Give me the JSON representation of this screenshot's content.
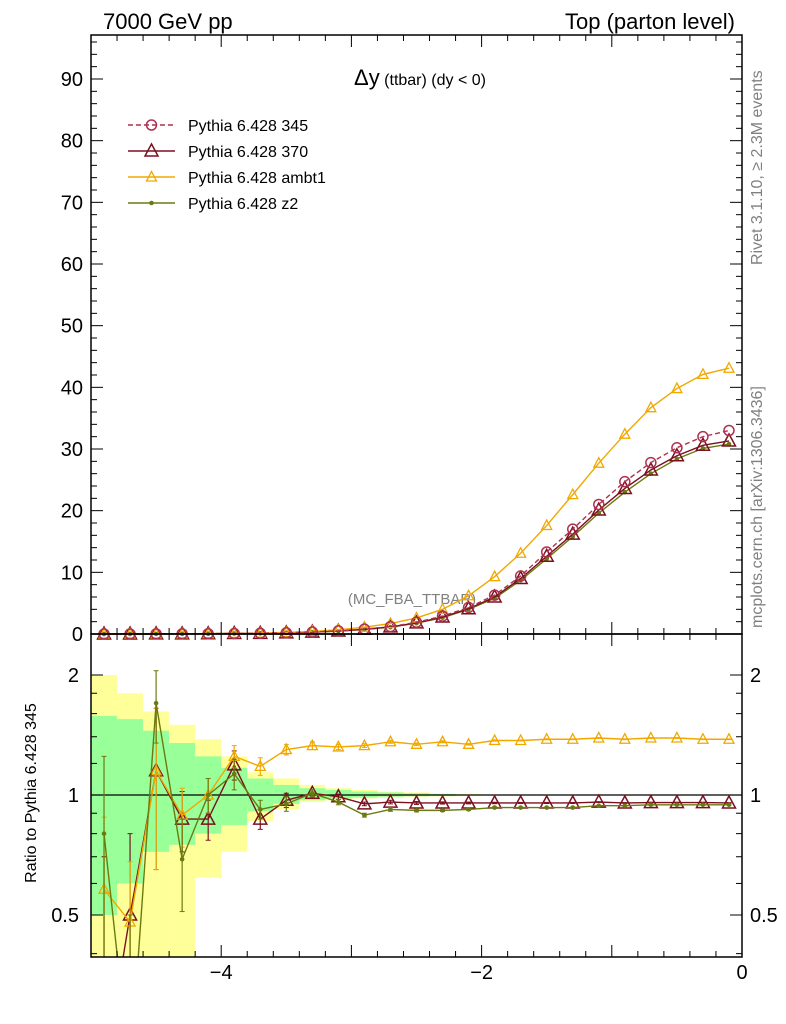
{
  "header": {
    "left": "7000 GeV pp",
    "right": "Top (parton level)"
  },
  "side_labels": {
    "rivet": "Rivet 3.1.10, ≥ 2.3M events",
    "mcplots": "mcplots.cern.ch [arXiv:1306.3436]"
  },
  "watermark": "(MC_FBA_TTBAR)",
  "ratio_ylabel": "Ratio to Pythia 6.428 345",
  "chart_data": [
    {
      "type": "line",
      "title": "Δy (ttbar) (dy < 0)",
      "title_main": "Δy",
      "title_rest": " (ttbar) (dy < 0)",
      "xlim": [
        -5,
        0
      ],
      "ylim": [
        0,
        97
      ],
      "yticks": [
        0,
        10,
        20,
        30,
        40,
        50,
        60,
        70,
        80,
        90
      ],
      "yticks_labels": [
        "0",
        "10",
        "20",
        "30",
        "40",
        "50",
        "60",
        "70",
        "80",
        "90"
      ],
      "legend_placement": "top-left",
      "x": [
        -4.9,
        -4.7,
        -4.5,
        -4.3,
        -4.1,
        -3.9,
        -3.7,
        -3.5,
        -3.3,
        -3.1,
        -2.9,
        -2.7,
        -2.5,
        -2.3,
        -2.1,
        -1.9,
        -1.7,
        -1.5,
        -1.3,
        -1.1,
        -0.9,
        -0.7,
        -0.5,
        -0.3,
        -0.1
      ],
      "series": [
        {
          "name": "Pythia 6.428 345",
          "color": "#b03050",
          "dashed": true,
          "marker": "circle",
          "values": [
            0.005,
            0.01,
            0.02,
            0.03,
            0.05,
            0.08,
            0.12,
            0.2,
            0.32,
            0.5,
            0.8,
            1.2,
            1.9,
            2.9,
            4.3,
            6.3,
            9.4,
            13.3,
            17.0,
            21.0,
            24.7,
            27.8,
            30.2,
            32.0,
            33.0
          ]
        },
        {
          "name": "Pythia 6.428 370",
          "color": "#7a1020",
          "dashed": false,
          "marker": "triangle",
          "values": [
            0.005,
            0.01,
            0.02,
            0.03,
            0.05,
            0.08,
            0.11,
            0.19,
            0.31,
            0.48,
            0.77,
            1.15,
            1.8,
            2.75,
            4.1,
            6.0,
            9.0,
            12.6,
            16.2,
            20.1,
            23.6,
            26.6,
            28.9,
            30.6,
            31.3
          ]
        },
        {
          "name": "Pythia 6.428 ambt1",
          "color": "#f0a800",
          "dashed": false,
          "marker": "triangle-small",
          "values": [
            0.005,
            0.01,
            0.02,
            0.03,
            0.05,
            0.09,
            0.14,
            0.26,
            0.42,
            0.68,
            1.1,
            1.7,
            2.6,
            4.0,
            6.2,
            9.3,
            13.1,
            17.6,
            22.6,
            27.7,
            32.4,
            36.7,
            39.8,
            42.1,
            43.1
          ]
        },
        {
          "name": "Pythia 6.428 z2",
          "color": "#6b7a10",
          "dashed": false,
          "marker": "dot",
          "values": [
            0.004,
            0.01,
            0.02,
            0.03,
            0.05,
            0.08,
            0.11,
            0.2,
            0.3,
            0.46,
            0.72,
            1.1,
            1.75,
            2.65,
            4.0,
            5.8,
            8.7,
            12.2,
            15.8,
            19.6,
            23.0,
            26.0,
            28.4,
            30.1,
            30.8
          ]
        }
      ]
    },
    {
      "type": "line",
      "title": "",
      "ylabel": "Ratio to Pythia 6.428 345",
      "xlim": [
        -5,
        0
      ],
      "ylim": [
        0.33,
        2.3
      ],
      "ylog": true,
      "yticks_labels": [
        "0.5",
        "1",
        "2"
      ],
      "yticks": [
        0.5,
        1,
        2
      ],
      "xticks": [
        -4,
        -2,
        0
      ],
      "xticks_labels": [
        "−4",
        "−2",
        "0"
      ],
      "reference_line": 1,
      "bands": {
        "x_edges": [
          -5.0,
          -4.8,
          -4.6,
          -4.4,
          -4.2,
          -4.0,
          -3.8,
          -3.6,
          -3.4,
          -3.2,
          -3.0,
          -2.8,
          -2.6,
          -2.4,
          -2.2,
          -2.0
        ],
        "yellow_low": [
          0.2,
          0.2,
          0.2,
          0.3,
          0.62,
          0.72,
          0.86,
          0.92,
          0.96,
          0.97,
          0.98,
          0.985,
          0.99,
          0.992,
          0.995
        ],
        "yellow_high": [
          2.0,
          1.8,
          1.62,
          1.5,
          1.38,
          1.25,
          1.14,
          1.1,
          1.06,
          1.04,
          1.03,
          1.02,
          1.015,
          1.01,
          1.005
        ],
        "green_low": [
          0.5,
          0.6,
          0.72,
          0.75,
          0.8,
          0.84,
          0.91,
          0.95,
          0.97,
          0.98,
          0.985,
          0.99,
          0.993,
          0.995,
          0.997
        ],
        "green_high": [
          1.58,
          1.55,
          1.45,
          1.35,
          1.25,
          1.17,
          1.1,
          1.06,
          1.04,
          1.03,
          1.02,
          1.015,
          1.01,
          1.006,
          1.003
        ]
      },
      "x": [
        -4.9,
        -4.7,
        -4.5,
        -4.3,
        -4.1,
        -3.9,
        -3.7,
        -3.5,
        -3.3,
        -3.1,
        -2.9,
        -2.7,
        -2.5,
        -2.3,
        -2.1,
        -1.9,
        -1.7,
        -1.5,
        -1.3,
        -1.1,
        -0.9,
        -0.7,
        -0.5,
        -0.3,
        -0.1
      ],
      "series": [
        {
          "name": "Pythia 6.428 370",
          "color": "#7a1020",
          "marker": "triangle",
          "values": [
            0.2,
            0.5,
            1.15,
            0.87,
            0.87,
            1.19,
            0.87,
            0.97,
            1.01,
            0.99,
            0.95,
            0.96,
            0.955,
            0.955,
            0.955,
            0.955,
            0.955,
            0.955,
            0.955,
            0.96,
            0.955,
            0.957,
            0.957,
            0.957,
            0.955
          ],
          "err": [
            0.5,
            0.3,
            0.5,
            0.15,
            0.1,
            0.1,
            0.05,
            0.04,
            0.02,
            0.015,
            0.01,
            0.01,
            0.008,
            0.006,
            0.005,
            0.004,
            0.003,
            0.003,
            0.003,
            0.002,
            0.002,
            0.002,
            0.002,
            0.002,
            0.002
          ]
        },
        {
          "name": "Pythia 6.428 ambt1",
          "color": "#f0a800",
          "marker": "triangle-small",
          "values": [
            0.58,
            0.48,
            1.15,
            0.89,
            1.0,
            1.25,
            1.18,
            1.3,
            1.33,
            1.32,
            1.33,
            1.36,
            1.34,
            1.36,
            1.34,
            1.37,
            1.37,
            1.38,
            1.38,
            1.39,
            1.38,
            1.39,
            1.39,
            1.38,
            1.38
          ],
          "err": [
            0.3,
            0.2,
            0.5,
            0.15,
            0.1,
            0.08,
            0.06,
            0.04,
            0.03,
            0.02,
            0.015,
            0.012,
            0.01,
            0.008,
            0.006,
            0.005,
            0.004,
            0.004,
            0.003,
            0.003,
            0.003,
            0.003,
            0.003,
            0.003,
            0.003
          ]
        },
        {
          "name": "Pythia 6.428 z2",
          "color": "#6b7a10",
          "marker": "dot",
          "values": [
            0.8,
            0.2,
            1.7,
            0.69,
            1.0,
            1.13,
            0.92,
            0.95,
            1.01,
            0.96,
            0.89,
            0.92,
            0.915,
            0.915,
            0.92,
            0.93,
            0.93,
            0.93,
            0.93,
            0.94,
            0.94,
            0.945,
            0.945,
            0.945,
            0.945
          ],
          "err": [
            0.45,
            0.3,
            0.35,
            0.18,
            0.1,
            0.1,
            0.05,
            0.04,
            0.02,
            0.015,
            0.01,
            0.01,
            0.008,
            0.006,
            0.005,
            0.004,
            0.003,
            0.003,
            0.003,
            0.002,
            0.002,
            0.002,
            0.002,
            0.002,
            0.002
          ]
        }
      ]
    }
  ]
}
